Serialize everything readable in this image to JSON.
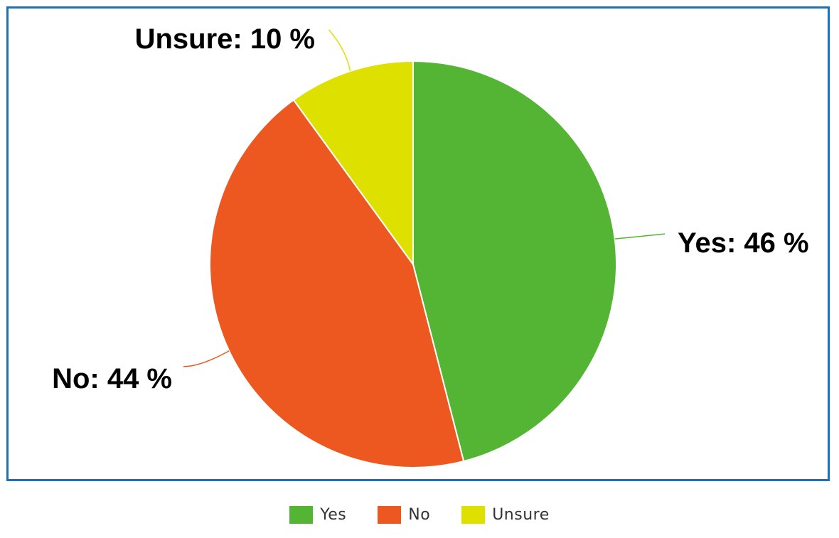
{
  "chart_data": {
    "type": "pie",
    "title": "",
    "slices": [
      {
        "label": "Yes",
        "value": 46,
        "data_label": "Yes: 46 %",
        "color": "#53b533"
      },
      {
        "label": "No",
        "value": 44,
        "data_label": "No: 44 %",
        "color": "#ec581f"
      },
      {
        "label": "Unsure",
        "value": 10,
        "data_label": "Unsure: 10 %",
        "color": "#dee000"
      }
    ],
    "legend_position": "bottom",
    "border_color": "#1a73b8"
  },
  "legend": {
    "items": [
      {
        "label": "Yes",
        "color": "#53b533"
      },
      {
        "label": "No",
        "color": "#ec581f"
      },
      {
        "label": "Unsure",
        "color": "#dee000"
      }
    ]
  }
}
